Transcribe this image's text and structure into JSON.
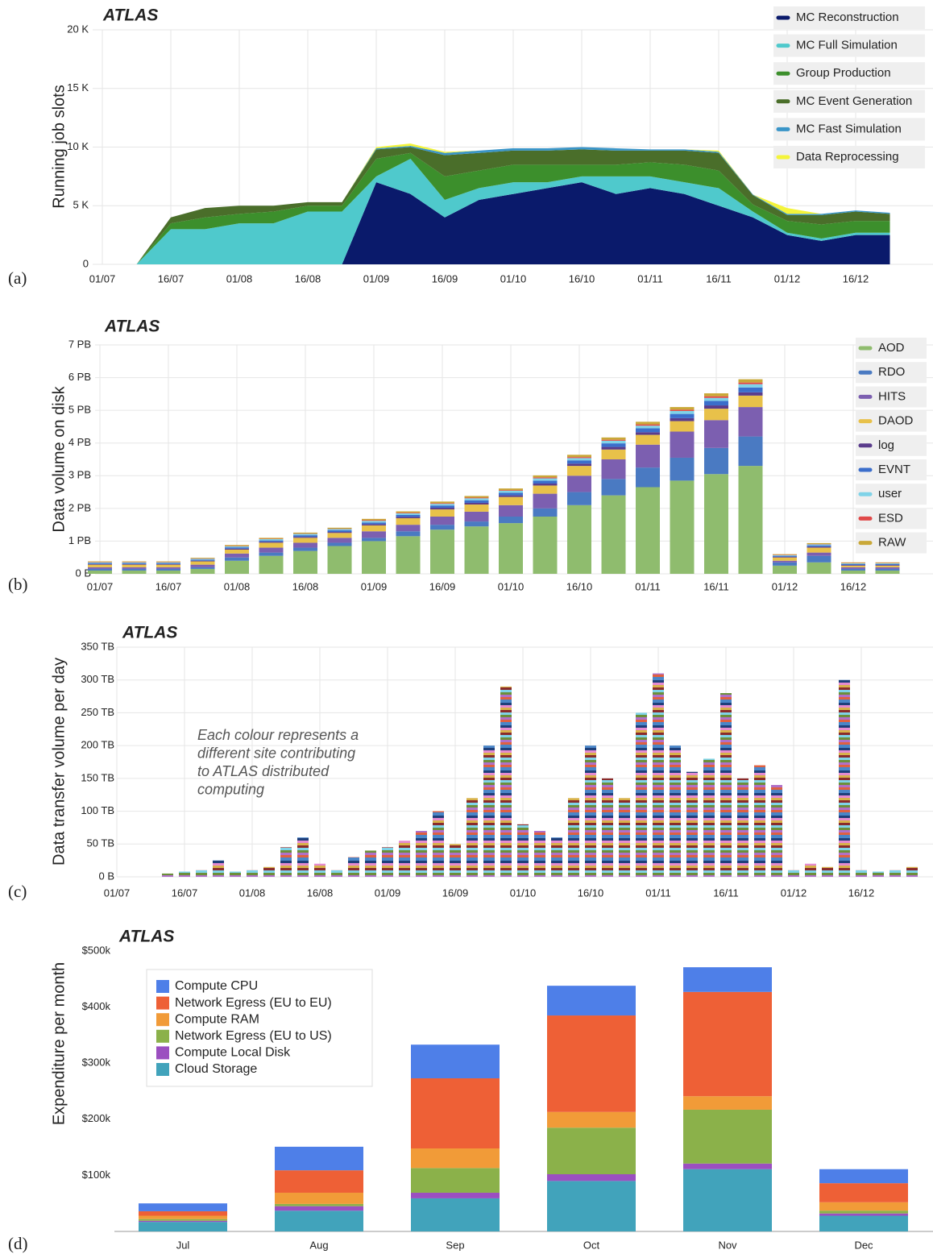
{
  "chart_data": [
    {
      "type": "area",
      "stacked": true,
      "panel_label": "(a)",
      "title": "ATLAS",
      "y_label": "Running job slots",
      "grid": true,
      "categories": [
        "01/07",
        null,
        "16/07",
        null,
        "01/08",
        null,
        "16/08",
        null,
        "01/09",
        null,
        "16/09",
        null,
        "01/10",
        null,
        "16/10",
        null,
        "01/11",
        null,
        "16/11",
        null,
        "01/12",
        null,
        "16/12",
        null
      ],
      "ylim": [
        0,
        20000
      ],
      "yticks": [
        0,
        {
          "value": 5000,
          "label": "5 K"
        },
        {
          "value": 10000,
          "label": "10 K"
        },
        {
          "value": 15000,
          "label": "15 K"
        },
        {
          "value": 20000,
          "label": "20 K"
        }
      ],
      "series": [
        {
          "name": "MC Reconstruction",
          "color": "#0a1a6b",
          "values": [
            0,
            0,
            0,
            0,
            0,
            0,
            0,
            0,
            7000,
            6000,
            4000,
            5500,
            6000,
            6500,
            7000,
            6000,
            6500,
            6000,
            5000,
            4000,
            2500,
            2000,
            2500,
            2500
          ]
        },
        {
          "name": "MC Full Simulation",
          "color": "#4fc9cc",
          "values": [
            0,
            0,
            3000,
            3000,
            3500,
            3500,
            4500,
            4500,
            500,
            3000,
            1500,
            1000,
            1000,
            500,
            500,
            1500,
            1000,
            1000,
            1500,
            500,
            200,
            200,
            200,
            200
          ]
        },
        {
          "name": "Group Production",
          "color": "#3c8f2c",
          "values": [
            0,
            0,
            500,
            1000,
            800,
            1000,
            500,
            500,
            1500,
            500,
            2000,
            1500,
            1500,
            1500,
            1000,
            1000,
            1200,
            1500,
            1500,
            600,
            1000,
            1200,
            1000,
            1000
          ]
        },
        {
          "name": "MC Event Generation",
          "color": "#4a6e2a",
          "values": [
            0,
            0,
            500,
            800,
            700,
            500,
            300,
            300,
            800,
            500,
            1800,
            1500,
            1200,
            1200,
            1300,
            1200,
            1000,
            1200,
            1500,
            800,
            500,
            800,
            800,
            600
          ]
        },
        {
          "name": "MC Fast Simulation",
          "color": "#3a95c8",
          "values": [
            0,
            0,
            0,
            0,
            0,
            0,
            0,
            0,
            100,
            100,
            200,
            200,
            200,
            200,
            200,
            200,
            100,
            100,
            100,
            50,
            100,
            100,
            100,
            100
          ]
        },
        {
          "name": "Data Reprocessing",
          "color": "#f4f43a",
          "values": [
            0,
            0,
            0,
            0,
            0,
            0,
            0,
            0,
            100,
            200,
            100,
            0,
            0,
            0,
            0,
            0,
            0,
            0,
            100,
            0,
            500,
            0,
            0,
            0
          ]
        }
      ]
    },
    {
      "type": "bar",
      "stacked": true,
      "panel_label": "(b)",
      "title": "ATLAS",
      "y_label": "Data volume on disk",
      "grid": true,
      "categories": [
        "01/07",
        null,
        "16/07",
        null,
        "01/08",
        null,
        "16/08",
        null,
        "01/09",
        null,
        "16/09",
        null,
        "01/10",
        null,
        "16/10",
        null,
        "01/11",
        null,
        "16/11",
        null,
        "01/12",
        null,
        "16/12",
        null
      ],
      "ylim": [
        0,
        7
      ],
      "yticks": [
        {
          "value": 0,
          "label": "0 B"
        },
        {
          "value": 1,
          "label": "1 PB"
        },
        {
          "value": 2,
          "label": "2 PB"
        },
        {
          "value": 3,
          "label": "3 PB"
        },
        {
          "value": 4,
          "label": "4 PB"
        },
        {
          "value": 5,
          "label": "5 PB"
        },
        {
          "value": 6,
          "label": "6 PB"
        },
        {
          "value": 7,
          "label": "7 PB"
        }
      ],
      "series": [
        {
          "name": "AOD",
          "color": "#8fbc6e",
          "values": [
            0.1,
            0.1,
            0.1,
            0.15,
            0.4,
            0.55,
            0.7,
            0.85,
            1.0,
            1.15,
            1.35,
            1.45,
            1.55,
            1.75,
            2.1,
            2.4,
            2.65,
            2.85,
            3.05,
            3.3,
            0.25,
            0.35,
            0.1,
            0.1
          ]
        },
        {
          "name": "RDO",
          "color": "#4a7ac2",
          "values": [
            0.05,
            0.05,
            0.05,
            0.05,
            0.1,
            0.1,
            0.1,
            0.1,
            0.1,
            0.15,
            0.15,
            0.15,
            0.2,
            0.25,
            0.4,
            0.5,
            0.6,
            0.7,
            0.8,
            0.9,
            0.1,
            0.2,
            0.05,
            0.05
          ]
        },
        {
          "name": "HITS",
          "color": "#7c5fb0",
          "values": [
            0.05,
            0.05,
            0.05,
            0.08,
            0.12,
            0.15,
            0.15,
            0.15,
            0.2,
            0.2,
            0.25,
            0.3,
            0.35,
            0.45,
            0.5,
            0.6,
            0.7,
            0.8,
            0.85,
            0.9,
            0.05,
            0.1,
            0.05,
            0.05
          ]
        },
        {
          "name": "DAOD",
          "color": "#e8c14a",
          "values": [
            0.08,
            0.08,
            0.08,
            0.1,
            0.12,
            0.15,
            0.15,
            0.15,
            0.18,
            0.2,
            0.22,
            0.22,
            0.25,
            0.25,
            0.3,
            0.3,
            0.3,
            0.32,
            0.35,
            0.35,
            0.1,
            0.15,
            0.05,
            0.05
          ]
        },
        {
          "name": "log",
          "color": "#5a3c8c",
          "values": [
            0.02,
            0.02,
            0.02,
            0.02,
            0.03,
            0.03,
            0.03,
            0.03,
            0.04,
            0.04,
            0.05,
            0.05,
            0.05,
            0.06,
            0.07,
            0.08,
            0.08,
            0.09,
            0.1,
            0.1,
            0.02,
            0.03,
            0.02,
            0.02
          ]
        },
        {
          "name": "EVNT",
          "color": "#3b6ecb",
          "values": [
            0.03,
            0.03,
            0.03,
            0.03,
            0.04,
            0.04,
            0.05,
            0.05,
            0.05,
            0.06,
            0.07,
            0.08,
            0.08,
            0.09,
            0.1,
            0.11,
            0.12,
            0.13,
            0.14,
            0.15,
            0.03,
            0.04,
            0.03,
            0.03
          ]
        },
        {
          "name": "user",
          "color": "#7fd3e8",
          "values": [
            0.02,
            0.02,
            0.02,
            0.03,
            0.03,
            0.04,
            0.04,
            0.04,
            0.05,
            0.05,
            0.05,
            0.06,
            0.06,
            0.07,
            0.07,
            0.08,
            0.08,
            0.09,
            0.09,
            0.1,
            0.02,
            0.03,
            0.02,
            0.02
          ]
        },
        {
          "name": "ESD",
          "color": "#e04848",
          "values": [
            0.01,
            0.01,
            0.01,
            0.01,
            0.01,
            0.01,
            0.01,
            0.01,
            0.02,
            0.02,
            0.02,
            0.02,
            0.02,
            0.03,
            0.03,
            0.03,
            0.04,
            0.04,
            0.05,
            0.05,
            0.01,
            0.01,
            0.01,
            0.01
          ]
        },
        {
          "name": "RAW",
          "color": "#c9a838",
          "values": [
            0.02,
            0.02,
            0.02,
            0.02,
            0.03,
            0.03,
            0.03,
            0.03,
            0.04,
            0.04,
            0.05,
            0.05,
            0.05,
            0.06,
            0.07,
            0.07,
            0.08,
            0.08,
            0.09,
            0.1,
            0.02,
            0.03,
            0.02,
            0.02
          ]
        }
      ]
    },
    {
      "type": "bar",
      "panel_label": "(c)",
      "title": "ATLAS",
      "y_label": "Data transfer volume per day",
      "grid": true,
      "annotation": [
        "Each colour represents a",
        "different site contributing",
        "to ATLAS distributed",
        "computing"
      ],
      "categories": [
        "01/07",
        null,
        null,
        null,
        "16/07",
        null,
        null,
        null,
        "01/08",
        null,
        null,
        null,
        "16/08",
        null,
        null,
        null,
        "01/09",
        null,
        null,
        null,
        "16/09",
        null,
        null,
        null,
        "01/10",
        null,
        null,
        null,
        "16/10",
        null,
        null,
        null,
        "01/11",
        null,
        null,
        null,
        "16/11",
        null,
        null,
        null,
        "01/12",
        null,
        null,
        null,
        "16/12",
        null,
        null,
        null
      ],
      "ylim": [
        0,
        350
      ],
      "yticks": [
        {
          "value": 0,
          "label": "0 B"
        },
        {
          "value": 50,
          "label": "50 TB"
        },
        {
          "value": 100,
          "label": "100 TB"
        },
        {
          "value": 150,
          "label": "150 TB"
        },
        {
          "value": 200,
          "label": "200 TB"
        },
        {
          "value": 250,
          "label": "250 TB"
        },
        {
          "value": 300,
          "label": "300 TB"
        },
        {
          "value": 350,
          "label": "350 TB"
        }
      ],
      "values": [
        0,
        0,
        0,
        5,
        8,
        10,
        25,
        8,
        10,
        15,
        45,
        60,
        20,
        10,
        30,
        40,
        45,
        55,
        70,
        100,
        50,
        120,
        200,
        290,
        80,
        70,
        60,
        120,
        200,
        150,
        120,
        250,
        310,
        200,
        160,
        180,
        280,
        150,
        170,
        140,
        10,
        20,
        15,
        300,
        10,
        8,
        10,
        15
      ]
    },
    {
      "type": "bar",
      "stacked": true,
      "panel_label": "(d)",
      "title": "ATLAS",
      "y_label": "Expenditure per month",
      "grid": false,
      "categories": [
        "Jul",
        "Aug",
        "Sep",
        "Oct",
        "Nov",
        "Dec"
      ],
      "ylim": [
        0,
        500000
      ],
      "yticks": [
        {
          "value": 100000,
          "label": "$100k"
        },
        {
          "value": 200000,
          "label": "$200k"
        },
        {
          "value": 300000,
          "label": "$300k"
        },
        {
          "value": 400000,
          "label": "$400k"
        },
        {
          "value": 500000,
          "label": "$500k"
        }
      ],
      "series": [
        {
          "name": "Compute CPU",
          "color": "#4e7fe8",
          "values": [
            14000,
            42000,
            60000,
            53000,
            44000,
            25000
          ]
        },
        {
          "name": "Network Egress (EU to EU)",
          "color": "#ee6036",
          "values": [
            8000,
            40000,
            125000,
            172000,
            186000,
            34000
          ]
        },
        {
          "name": "Compute RAM",
          "color": "#f19b38",
          "values": [
            6000,
            20000,
            35000,
            28000,
            24000,
            15000
          ]
        },
        {
          "name": "Network Egress (EU to US)",
          "color": "#8bb14a",
          "values": [
            3000,
            4000,
            44000,
            83000,
            96000,
            5000
          ]
        },
        {
          "name": "Compute Local Disk",
          "color": "#9b4fc0",
          "values": [
            2000,
            8000,
            10000,
            12000,
            10000,
            4000
          ]
        },
        {
          "name": "Cloud Storage",
          "color": "#41a3bb",
          "values": [
            17000,
            37000,
            59000,
            90000,
            111000,
            28000
          ]
        }
      ]
    }
  ]
}
